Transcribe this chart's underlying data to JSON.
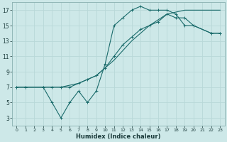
{
  "xlabel": "Humidex (Indice chaleur)",
  "xlim": [
    -0.5,
    23.5
  ],
  "ylim": [
    2,
    18
  ],
  "xticks": [
    0,
    1,
    2,
    3,
    4,
    5,
    6,
    7,
    8,
    9,
    10,
    11,
    12,
    13,
    14,
    15,
    16,
    17,
    18,
    19,
    20,
    21,
    22,
    23
  ],
  "yticks": [
    3,
    5,
    7,
    9,
    11,
    13,
    15,
    17
  ],
  "bg_color": "#cde8e8",
  "line_color": "#1a6b6b",
  "grid_color": "#b8d8d8",
  "curve1_x": [
    0,
    1,
    3,
    4,
    5,
    6,
    7,
    8,
    9,
    10,
    11,
    12,
    13,
    14,
    15,
    16,
    17,
    18,
    19,
    20,
    22,
    23
  ],
  "curve1_y": [
    7,
    7,
    7,
    5,
    3,
    5,
    6.5,
    5,
    6.5,
    10,
    15,
    16,
    17,
    17.5,
    17,
    17,
    17,
    16.5,
    15,
    15,
    14,
    14
  ],
  "curve2_x": [
    0,
    1,
    3,
    4,
    5,
    6,
    7,
    8,
    9,
    10,
    11,
    12,
    13,
    14,
    15,
    16,
    17,
    18,
    19,
    20,
    22,
    23
  ],
  "curve2_y": [
    7,
    7,
    7,
    7,
    7,
    7,
    7.5,
    8,
    8.5,
    9.5,
    11,
    12.5,
    13.5,
    14.5,
    15,
    15.5,
    16.5,
    16,
    16,
    15,
    14,
    14
  ],
  "curve3_x": [
    0,
    1,
    3,
    5,
    7,
    9,
    11,
    13,
    15,
    17,
    19,
    21,
    23
  ],
  "curve3_y": [
    7,
    7,
    7,
    7,
    7.5,
    8.5,
    10.5,
    13,
    15,
    16.5,
    17,
    17,
    17
  ]
}
